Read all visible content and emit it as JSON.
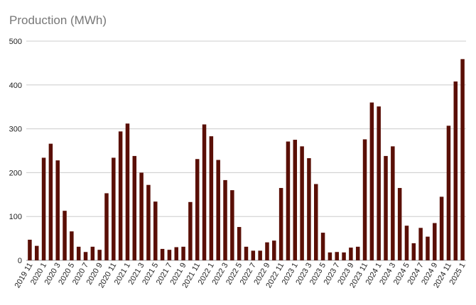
{
  "chart_data": {
    "type": "bar",
    "title": "Production (MWh)",
    "xlabel": "",
    "ylabel": "",
    "ylim": [
      0,
      500
    ],
    "yticks": [
      0,
      100,
      200,
      300,
      400,
      500
    ],
    "grid": true,
    "legend": "none",
    "bar_color": "#5a0f06",
    "grid_color": "#cccccc",
    "categories": [
      "2019 11",
      "2019 12",
      "2020 1",
      "2020 2",
      "2020 3",
      "2020 4",
      "2020 5",
      "2020 6",
      "2020 7",
      "2020 8",
      "2020 9",
      "2020 10",
      "2020 11",
      "2020 12",
      "2021 1",
      "2021 2",
      "2021 3",
      "2021 4",
      "2021 5",
      "2021 6",
      "2021 7",
      "2021 8",
      "2021 9",
      "2021 10",
      "2021 11",
      "2021 12",
      "2022 1",
      "2022 2",
      "2022 3",
      "2022 4",
      "2022 5",
      "2022 6",
      "2022 7",
      "2022 8",
      "2022 9",
      "2022 10",
      "2022 11",
      "2022 12",
      "2023 1",
      "2023 2",
      "2023 3",
      "2023 4",
      "2023 5",
      "2023 6",
      "2023 7",
      "2023 8",
      "2023 9",
      "2023 10",
      "2023 11",
      "2023 12",
      "2024 1",
      "2024 2",
      "2024 3",
      "2024 4",
      "2024 5",
      "2024 6",
      "2024 7",
      "2024 8",
      "2024 9",
      "2024 10",
      "2024 11",
      "2024 12",
      "2025 1"
    ],
    "tick_labels": [
      "2019 11",
      "2020 1",
      "2020 3",
      "2020 5",
      "2020 7",
      "2020 9",
      "2020 11",
      "2021 1",
      "2021 3",
      "2021 5",
      "2021 7",
      "2021 9",
      "2021 11",
      "2022 1",
      "2022 3",
      "2022 5",
      "2022 7",
      "2022 9",
      "2022 11",
      "2023 1",
      "2023 3",
      "2023 5",
      "2023 7",
      "2023 9",
      "2023 11",
      "2024 1",
      "2024 3",
      "2024 5",
      "2024 7",
      "2024 9",
      "2024 11",
      "2025 1"
    ],
    "values": [
      47,
      33,
      234,
      266,
      228,
      113,
      66,
      31,
      19,
      31,
      24,
      153,
      234,
      294,
      312,
      238,
      200,
      172,
      134,
      26,
      24,
      30,
      31,
      133,
      231,
      310,
      283,
      229,
      183,
      160,
      76,
      31,
      22,
      22,
      41,
      45,
      165,
      271,
      275,
      260,
      233,
      174,
      63,
      18,
      19,
      18,
      29,
      31,
      276,
      360,
      351,
      238,
      260,
      165,
      79,
      39,
      74,
      54,
      85,
      145,
      307,
      408,
      459
    ]
  }
}
